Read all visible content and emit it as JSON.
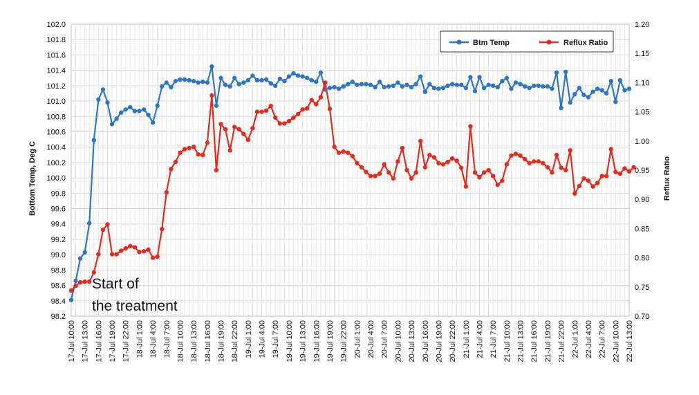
{
  "chart_data": {
    "type": "line",
    "xlabel": "",
    "ylabel": "Bottom Temp, Deg C",
    "y2label": "Reflux Ratio",
    "ylim": [
      98.2,
      102.0
    ],
    "y2lim": [
      0.7,
      1.2
    ],
    "yticks": [
      "102.0",
      "101.8",
      "101.6",
      "101.4",
      "101.2",
      "101.0",
      "100.8",
      "100.6",
      "100.4",
      "100.2",
      "100.0",
      "99.8",
      "99.6",
      "99.4",
      "99.2",
      "99.0",
      "98.8",
      "98.6",
      "98.4",
      "98.2"
    ],
    "y2ticks": [
      "1.20",
      "1.15",
      "1.10",
      "1.05",
      "1.00",
      "0.95",
      "0.90",
      "0.85",
      "0.80",
      "0.75",
      "0.70"
    ],
    "grid": true,
    "legend_position": "top-right",
    "colors": {
      "btm_temp": "#2e75c6",
      "reflux_ratio": "#e8291c"
    },
    "x_tick_labels": [
      "17-Jul 10:00",
      "17-Jul 13:00",
      "17-Jul 16:00",
      "17-Jul 19:00",
      "17-Jul 22:00",
      "18-Jul 1:00",
      "18-Jul 4:00",
      "18-Jul 7:00",
      "18-Jul 10:00",
      "18-Jul 13:00",
      "18-Jul 16:00",
      "18-Jul 19:00",
      "18-Jul 22:00",
      "19-Jul 1:00",
      "19-Jul 4:00",
      "19-Jul 7:00",
      "19-Jul 10:00",
      "19-Jul 13:00",
      "19-Jul 16:00",
      "19-Jul 19:00",
      "19-Jul 22:00",
      "20-Jul 1:00",
      "20-Jul 4:00",
      "20-Jul 7:00",
      "20-Jul 10:00",
      "20-Jul 13:00",
      "20-Jul 16:00",
      "20-Jul 19:00",
      "20-Jul 22:00",
      "21-Jul 1:00",
      "21-Jul 4:00",
      "21-Jul 7:00",
      "21-Jul 10:00",
      "21-Jul 13:00",
      "21-Jul 16:00",
      "21-Jul 19:00",
      "21-Jul 22:00",
      "22-Jul 1:00",
      "22-Jul 4:00",
      "22-Jul 7:00",
      "22-Jul 10:00",
      "22-Jul 13:00"
    ],
    "annotation": {
      "line1": "Start of",
      "line2": "the treatment"
    },
    "series": [
      {
        "name": "Btm Temp",
        "axis": "left",
        "values": [
          98.41,
          98.66,
          98.95,
          99.03,
          99.41,
          100.49,
          101.02,
          101.15,
          100.98,
          100.7,
          100.77,
          100.85,
          100.89,
          100.92,
          100.87,
          100.87,
          100.89,
          100.82,
          100.72,
          100.94,
          101.19,
          101.24,
          101.18,
          101.26,
          101.28,
          101.28,
          101.27,
          101.26,
          101.24,
          101.25,
          101.24,
          101.45,
          100.94,
          101.3,
          101.21,
          101.19,
          101.3,
          101.22,
          101.24,
          101.27,
          101.33,
          101.27,
          101.27,
          101.28,
          101.23,
          101.2,
          101.29,
          101.26,
          101.32,
          101.36,
          101.33,
          101.32,
          101.3,
          101.27,
          101.25,
          101.37,
          101.15,
          101.17,
          101.18,
          101.16,
          101.19,
          101.22,
          101.25,
          101.21,
          101.22,
          101.22,
          101.21,
          101.18,
          101.25,
          101.18,
          101.19,
          101.2,
          101.24,
          101.19,
          101.21,
          101.18,
          101.22,
          101.32,
          101.12,
          101.22,
          101.17,
          101.16,
          101.17,
          101.2,
          101.22,
          101.21,
          101.21,
          101.17,
          101.31,
          101.13,
          101.31,
          101.17,
          101.21,
          101.2,
          101.18,
          101.26,
          101.3,
          101.16,
          101.24,
          101.22,
          101.19,
          101.17,
          101.2,
          101.2,
          101.19,
          101.19,
          101.16,
          101.37,
          100.91,
          101.38,
          100.98,
          101.09,
          101.17,
          101.08,
          101.05,
          101.12,
          101.16,
          101.14,
          101.1,
          101.26,
          100.99,
          101.27,
          101.14,
          101.16
        ]
      },
      {
        "name": "Reflux Ratio",
        "axis": "right",
        "values": [
          0.744,
          0.752,
          0.758,
          0.759,
          0.759,
          0.775,
          0.806,
          0.848,
          0.857,
          0.806,
          0.806,
          0.812,
          0.816,
          0.82,
          0.818,
          0.81,
          0.811,
          0.814,
          0.8,
          0.802,
          0.849,
          0.912,
          0.952,
          0.964,
          0.98,
          0.986,
          0.988,
          0.99,
          0.977,
          0.976,
          0.997,
          1.078,
          0.95,
          1.029,
          1.02,
          0.984,
          1.024,
          1.02,
          1.012,
          1.002,
          1.022,
          1.05,
          1.05,
          1.052,
          1.06,
          1.04,
          1.03,
          1.03,
          1.034,
          1.04,
          1.046,
          1.054,
          1.056,
          1.07,
          1.063,
          1.075,
          1.1,
          1.055,
          0.99,
          0.98,
          0.982,
          0.98,
          0.974,
          0.962,
          0.955,
          0.947,
          0.94,
          0.94,
          0.944,
          0.96,
          0.946,
          0.936,
          0.965,
          0.988,
          0.95,
          0.936,
          0.946,
          1.0,
          0.955,
          0.976,
          0.972,
          0.962,
          0.96,
          0.964,
          0.97,
          0.966,
          0.954,
          0.922,
          1.025,
          0.946,
          0.938,
          0.946,
          0.95,
          0.94,
          0.925,
          0.932,
          0.96,
          0.975,
          0.978,
          0.975,
          0.969,
          0.962,
          0.965,
          0.965,
          0.962,
          0.955,
          0.946,
          0.976,
          0.954,
          0.95,
          0.984,
          0.91,
          0.923,
          0.936,
          0.932,
          0.922,
          0.928,
          0.94,
          0.94,
          0.986,
          0.947,
          0.944,
          0.953,
          0.948,
          0.955
        ]
      }
    ]
  }
}
